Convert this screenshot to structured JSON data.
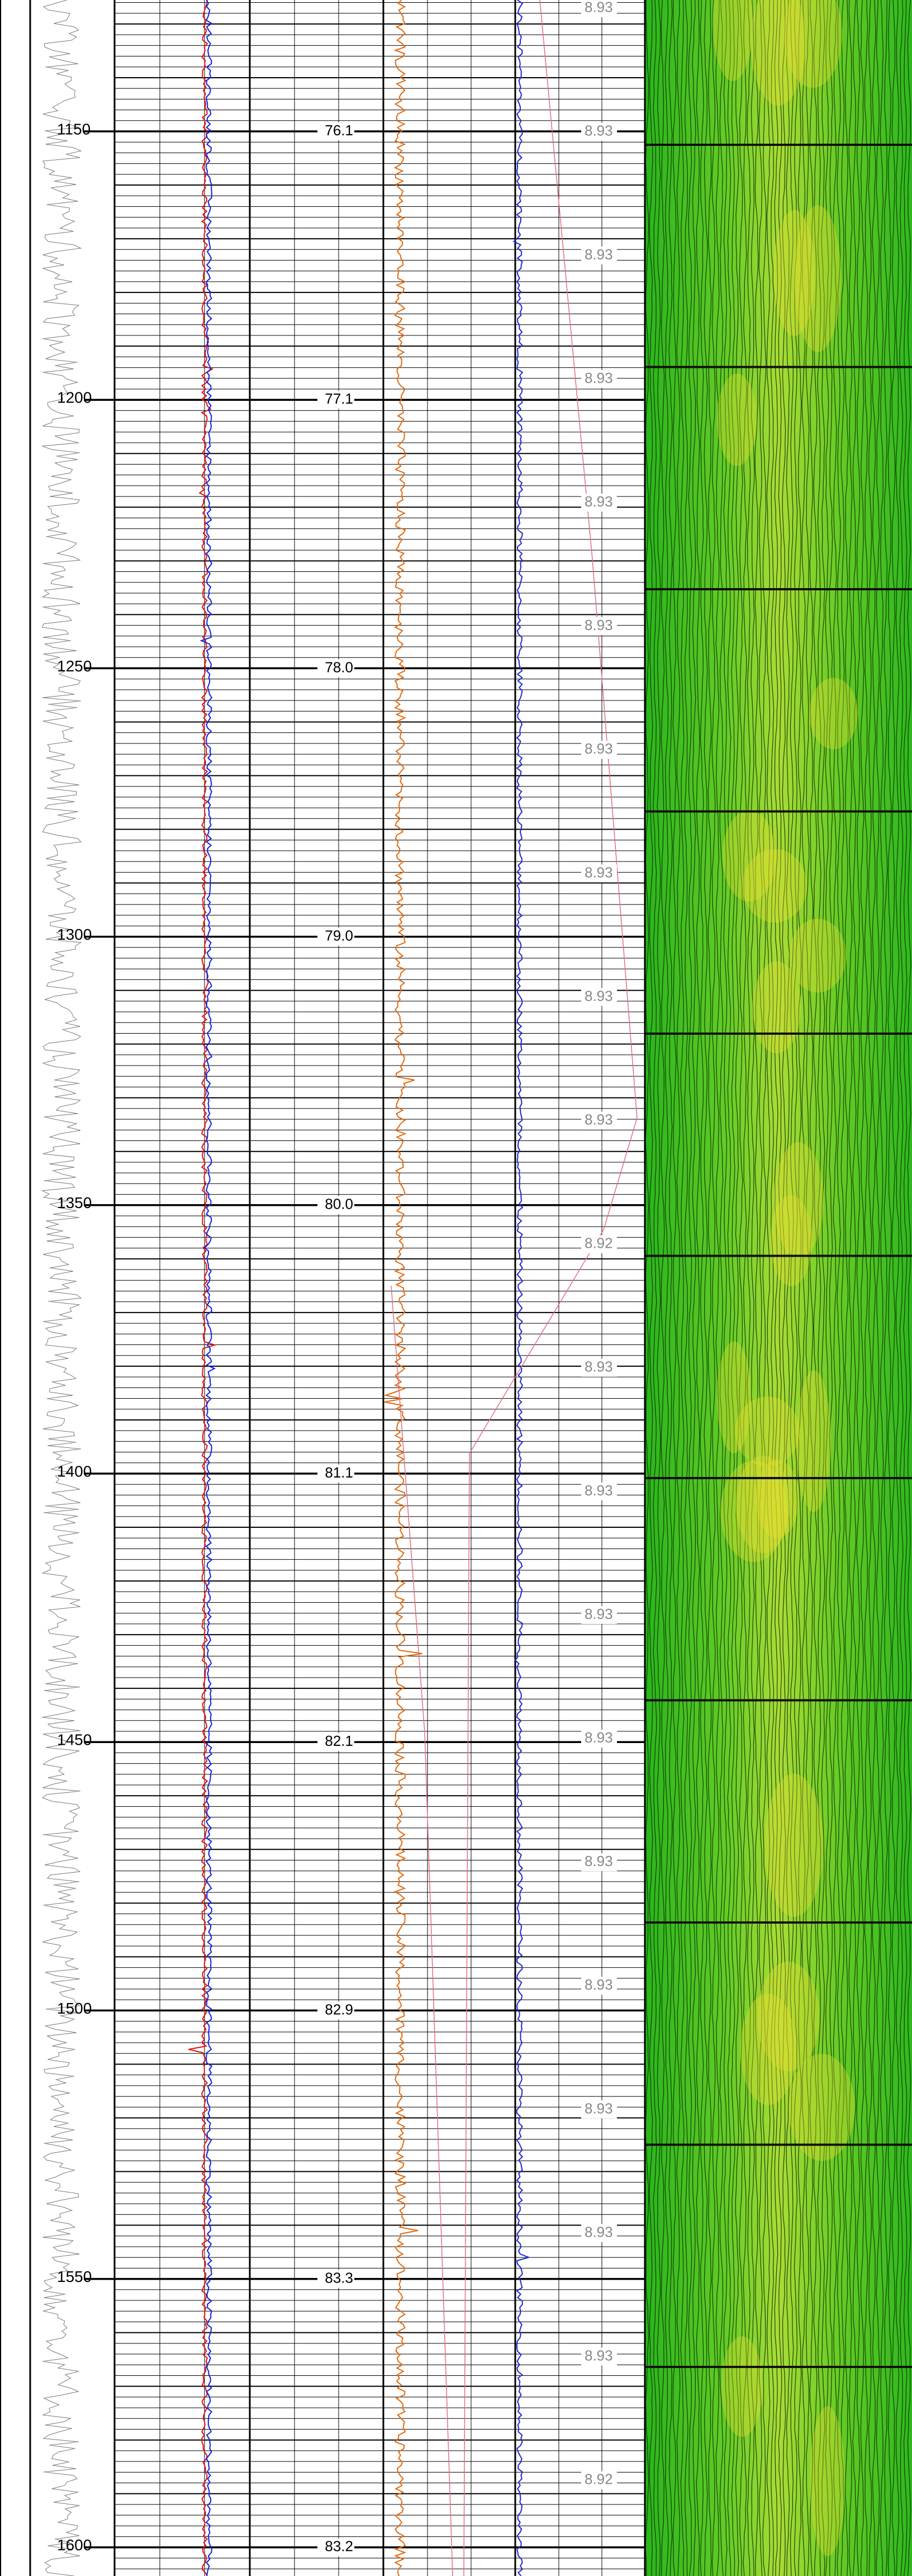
{
  "depth_track": {
    "labels": [
      "1150",
      "1200",
      "1250",
      "1300",
      "1350",
      "1400",
      "1450",
      "1500",
      "1550",
      "1600"
    ]
  },
  "track2": {
    "labels": [
      "76.1",
      "77.1",
      "78.0",
      "79.0",
      "80.0",
      "81.1",
      "82.1",
      "82.9",
      "83.3",
      "83.2"
    ]
  },
  "track3": {
    "labels": [
      "8.93",
      "8.93",
      "8.93",
      "8.93",
      "8.93",
      "8.93",
      "8.93",
      "8.93",
      "8.93",
      "8.93",
      "8.92",
      "8.93",
      "8.93",
      "8.93",
      "8.93",
      "8.93",
      "8.93",
      "8.93",
      "8.93",
      "8.93",
      "8.92"
    ]
  }
}
